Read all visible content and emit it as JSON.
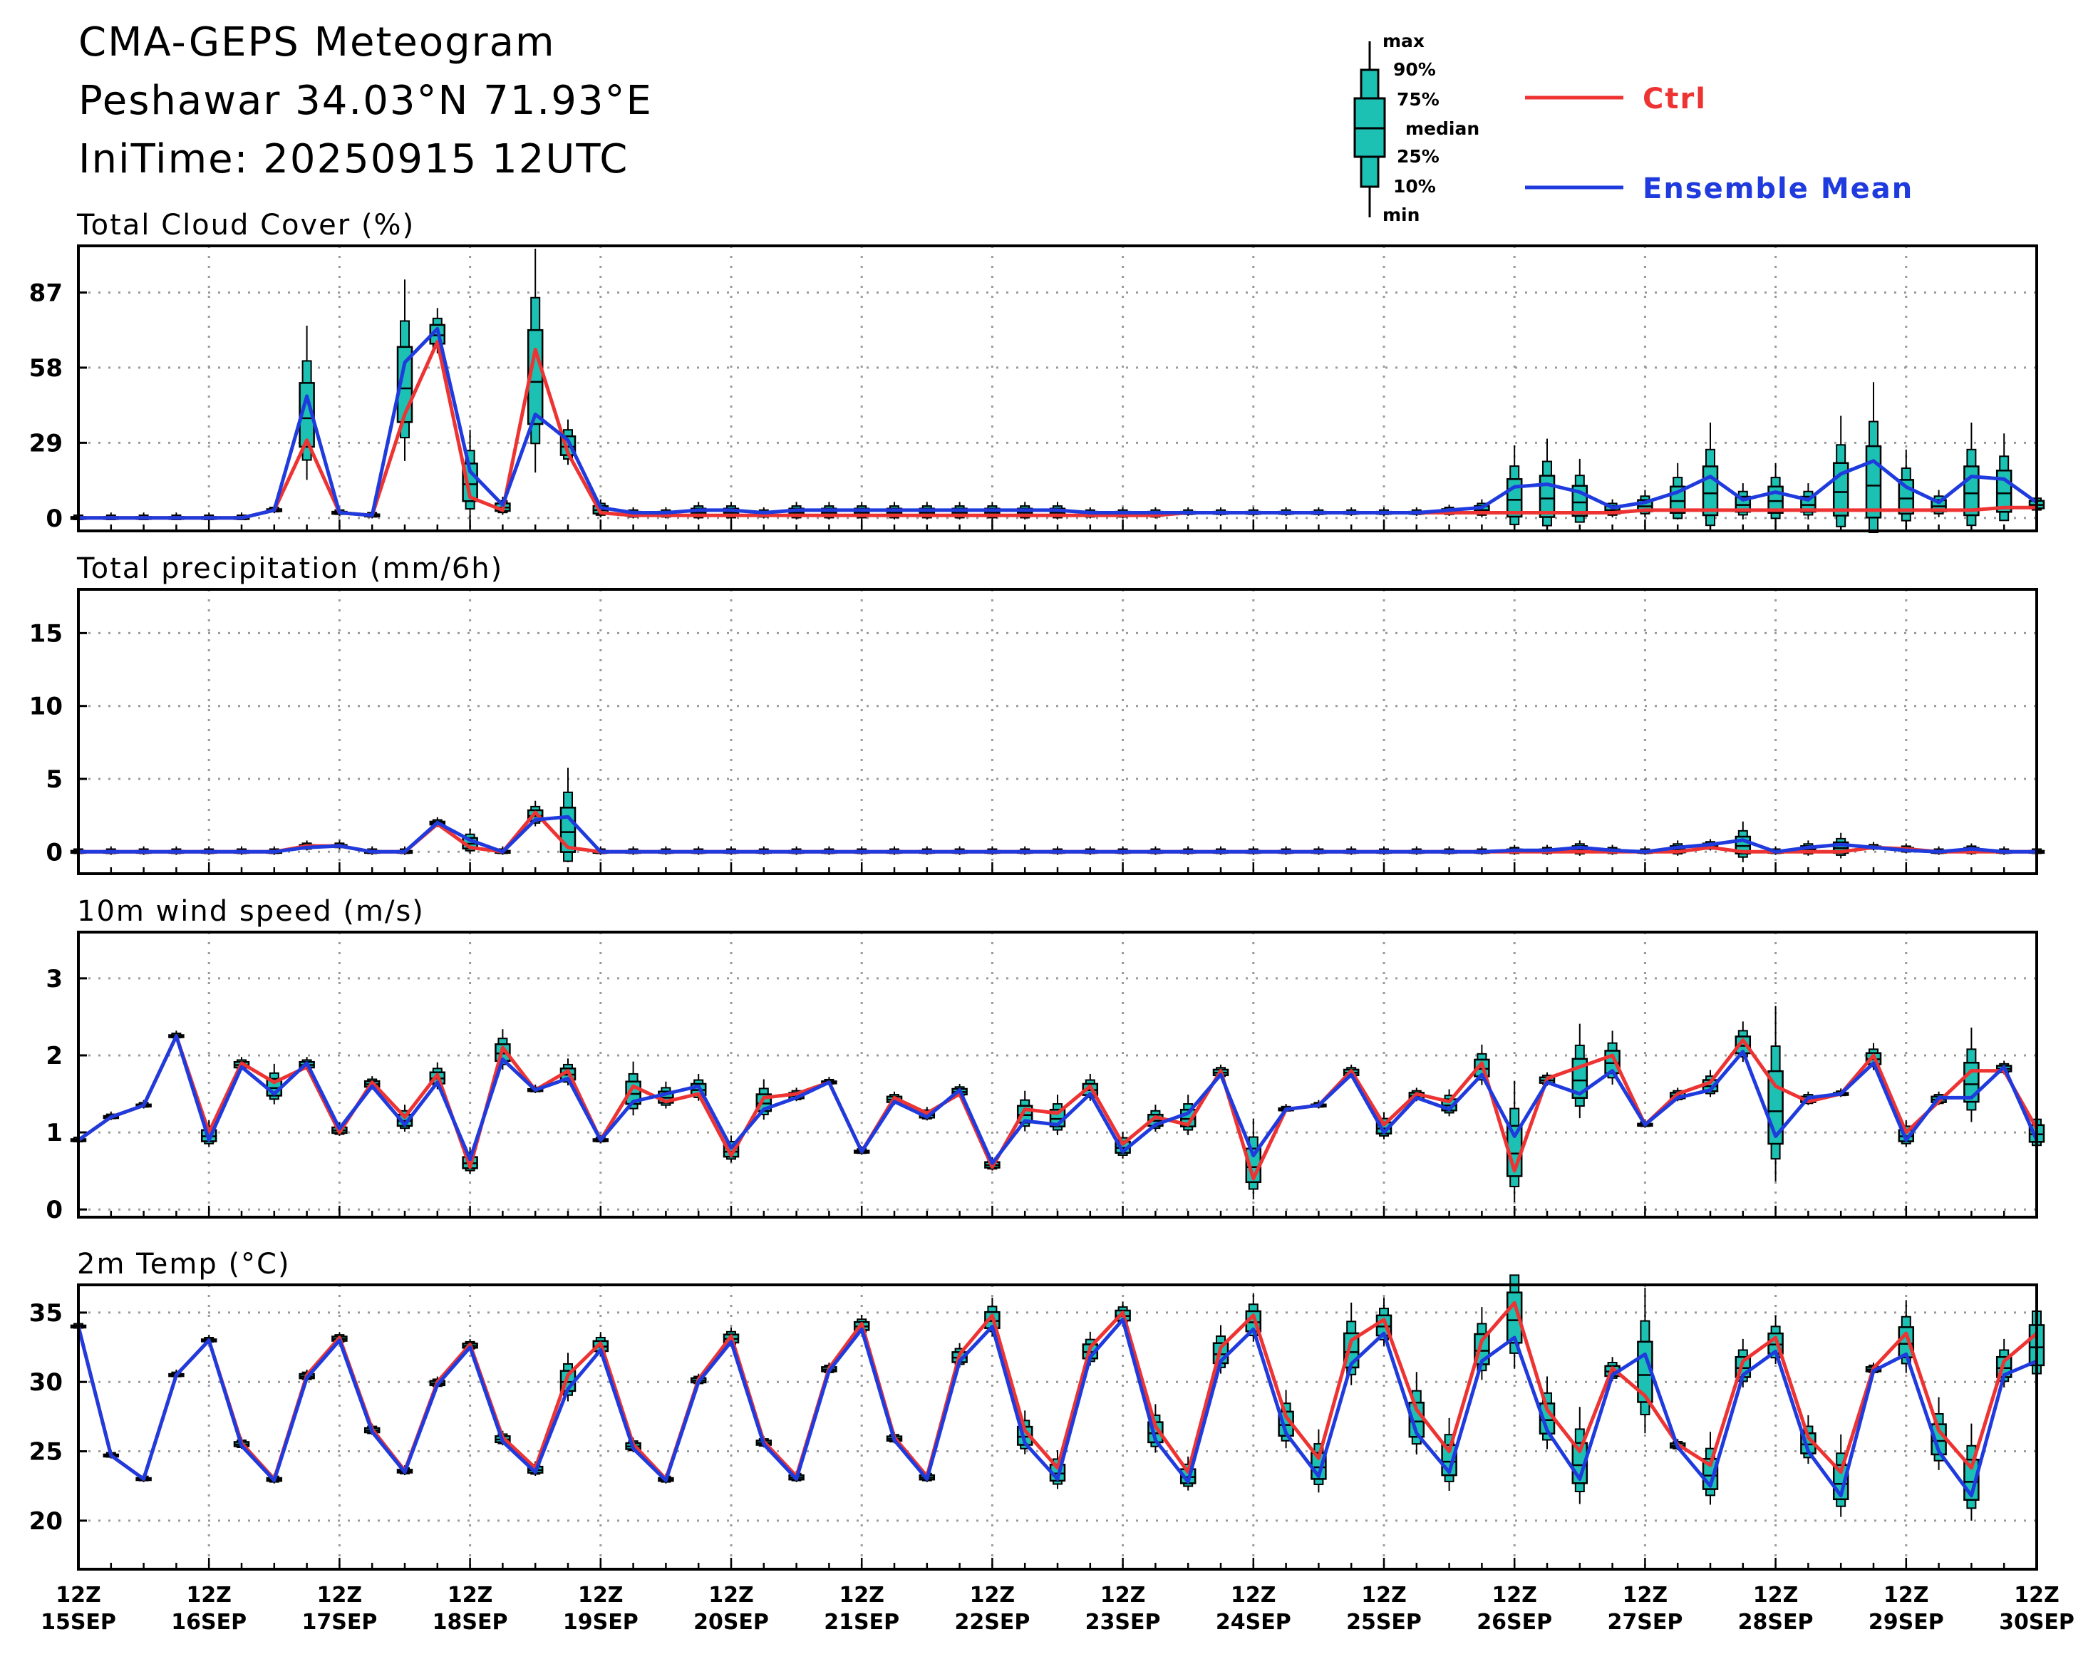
{
  "header": {
    "title": "CMA-GEPS Meteogram",
    "location": "Peshawar 34.03°N 71.93°E",
    "init_time": "IniTime: 20250915 12UTC"
  },
  "legend": {
    "box_labels": [
      "max",
      "90%",
      "75%",
      "median",
      "25%",
      "10%",
      "min"
    ],
    "ctrl_label": "Ctrl",
    "mean_label": "Ensemble Mean",
    "colors": {
      "ctrl": "#ee3333",
      "mean": "#1f3bde",
      "box": "#1cc1b3"
    }
  },
  "chart_data": [
    {
      "type": "boxplot",
      "title": "Total Cloud Cover (%)",
      "ylim": [
        -5,
        105
      ],
      "yticks": [
        0,
        29,
        58,
        87
      ],
      "grid": true,
      "steps": 61,
      "x_major_labels": [
        [
          "12Z",
          "15SEP"
        ],
        [
          "12Z",
          "16SEP"
        ],
        [
          "12Z",
          "17SEP"
        ],
        [
          "12Z",
          "18SEP"
        ],
        [
          "12Z",
          "19SEP"
        ],
        [
          "12Z",
          "20SEP"
        ],
        [
          "12Z",
          "21SEP"
        ],
        [
          "12Z",
          "22SEP"
        ],
        [
          "12Z",
          "23SEP"
        ],
        [
          "12Z",
          "24SEP"
        ],
        [
          "12Z",
          "25SEP"
        ],
        [
          "12Z",
          "26SEP"
        ],
        [
          "12Z",
          "27SEP"
        ],
        [
          "12Z",
          "28SEP"
        ],
        [
          "12Z",
          "29SEP"
        ],
        [
          "12Z",
          "30SEP"
        ]
      ],
      "ctrl": [
        0,
        0,
        0,
        0,
        0,
        0,
        3,
        30,
        2,
        1,
        40,
        68,
        8,
        3,
        65,
        25,
        2,
        1,
        1,
        1,
        1,
        1,
        1,
        1,
        1,
        1,
        1,
        1,
        1,
        1,
        1,
        1,
        1,
        1,
        2,
        2,
        2,
        2,
        2,
        2,
        2,
        2,
        2,
        2,
        2,
        2,
        2,
        2,
        3,
        3,
        3,
        3,
        3,
        3,
        3,
        3,
        3,
        3,
        3,
        4,
        4
      ],
      "mean": [
        0,
        0,
        0,
        0,
        0,
        0,
        3,
        47,
        2,
        1,
        60,
        73,
        18,
        5,
        40,
        30,
        4,
        2,
        2,
        3,
        3,
        2,
        3,
        3,
        3,
        3,
        3,
        3,
        3,
        3,
        3,
        2,
        2,
        2,
        2,
        2,
        2,
        2,
        2,
        2,
        2,
        2,
        3,
        4,
        12,
        13,
        10,
        4,
        6,
        10,
        16,
        7,
        10,
        7,
        17,
        22,
        12,
        6,
        16,
        15,
        6
      ]
    },
    {
      "type": "boxplot",
      "title": "Total precipitation (mm/6h)",
      "ylim": [
        -1.5,
        18
      ],
      "yticks": [
        0,
        5,
        10,
        15
      ],
      "grid": true,
      "steps": 61,
      "ctrl": [
        0,
        0,
        0,
        0,
        0,
        0,
        0,
        0.4,
        0.4,
        0,
        0,
        1.9,
        0.3,
        0,
        2.7,
        0.3,
        0,
        0,
        0,
        0,
        0,
        0,
        0,
        0,
        0,
        0,
        0,
        0,
        0,
        0,
        0,
        0,
        0,
        0,
        0,
        0,
        0,
        0,
        0,
        0,
        0,
        0,
        0,
        0,
        0,
        0,
        0,
        0,
        0,
        0,
        0.3,
        0,
        0,
        0,
        0,
        0.3,
        0.2,
        0,
        0,
        0,
        0
      ],
      "mean": [
        0,
        0,
        0,
        0,
        0,
        0,
        0,
        0.3,
        0.4,
        0,
        0,
        2.0,
        0.8,
        0,
        2.2,
        2.4,
        0,
        0,
        0,
        0,
        0,
        0,
        0,
        0,
        0,
        0,
        0,
        0,
        0,
        0,
        0,
        0,
        0,
        0,
        0,
        0,
        0,
        0,
        0,
        0,
        0,
        0,
        0,
        0,
        0.1,
        0.1,
        0.3,
        0.1,
        0,
        0.3,
        0.5,
        0.8,
        0,
        0.3,
        0.5,
        0.3,
        0.1,
        0,
        0.2,
        0,
        0
      ]
    },
    {
      "type": "boxplot",
      "title": "10m wind speed (m/s)",
      "ylim": [
        -0.1,
        3.6
      ],
      "yticks": [
        0,
        1,
        2,
        3
      ],
      "grid": true,
      "steps": 61,
      "ctrl": [
        0.9,
        1.2,
        1.35,
        2.25,
        1.0,
        1.9,
        1.65,
        1.85,
        1.0,
        1.65,
        1.2,
        1.75,
        0.55,
        2.1,
        1.55,
        1.8,
        0.9,
        1.6,
        1.4,
        1.5,
        0.7,
        1.45,
        1.5,
        1.65,
        0.75,
        1.45,
        1.25,
        1.5,
        0.55,
        1.3,
        1.25,
        1.6,
        0.85,
        1.2,
        1.1,
        1.8,
        0.4,
        1.3,
        1.35,
        1.8,
        1.1,
        1.5,
        1.4,
        1.9,
        0.5,
        1.7,
        1.85,
        2.0,
        1.1,
        1.5,
        1.65,
        2.2,
        1.6,
        1.4,
        1.5,
        2.0,
        1.0,
        1.4,
        1.8,
        1.8,
        1.05
      ],
      "mean": [
        0.9,
        1.2,
        1.35,
        2.25,
        0.9,
        1.85,
        1.5,
        1.9,
        1.05,
        1.6,
        1.1,
        1.65,
        0.65,
        1.95,
        1.55,
        1.7,
        0.9,
        1.4,
        1.5,
        1.6,
        0.8,
        1.3,
        1.45,
        1.65,
        0.75,
        1.4,
        1.2,
        1.55,
        0.6,
        1.15,
        1.1,
        1.5,
        0.75,
        1.1,
        1.25,
        1.75,
        0.7,
        1.3,
        1.35,
        1.75,
        1.0,
        1.45,
        1.3,
        1.75,
        0.95,
        1.65,
        1.5,
        1.8,
        1.1,
        1.45,
        1.55,
        2.05,
        0.95,
        1.45,
        1.5,
        1.9,
        0.9,
        1.45,
        1.45,
        1.85,
        0.9
      ]
    },
    {
      "type": "boxplot",
      "title": "2m Temp (°C)",
      "ylim": [
        16.5,
        37
      ],
      "yticks": [
        20,
        25,
        30,
        35
      ],
      "grid": true,
      "steps": 61,
      "ctrl": [
        34,
        24.7,
        23,
        30.5,
        33,
        25.6,
        23,
        30.5,
        33.2,
        26.6,
        23.6,
        30,
        32.7,
        26,
        23.8,
        30.5,
        32.8,
        25.5,
        23,
        30.2,
        33.3,
        25.7,
        23.2,
        31,
        34.2,
        26,
        23.2,
        32,
        34.8,
        26.5,
        23.8,
        32.5,
        35,
        26.8,
        23.5,
        32.5,
        34.8,
        27.5,
        24.5,
        33,
        34.5,
        28,
        25,
        33,
        35.7,
        28,
        25,
        31,
        29,
        25.5,
        24,
        31.5,
        33.2,
        26,
        23.5,
        31,
        33.5,
        26.5,
        23.8,
        31.5,
        33.5
      ],
      "mean": [
        34,
        24.7,
        23,
        30.5,
        33,
        25.4,
        22.9,
        30.3,
        33,
        26.4,
        23.5,
        29.8,
        32.5,
        25.7,
        23.5,
        29.5,
        32.3,
        25.2,
        22.9,
        30,
        32.9,
        25.5,
        23,
        30.8,
        33.8,
        25.8,
        23,
        31.5,
        34,
        25.6,
        23,
        31.8,
        34.5,
        25.8,
        22.8,
        31.5,
        33.8,
        26.3,
        23.2,
        31.3,
        33.5,
        26.3,
        23.5,
        31.5,
        33.2,
        26.5,
        23,
        30.5,
        32,
        25.3,
        22.5,
        30.5,
        32.2,
        25,
        21.8,
        30.8,
        32,
        25,
        21.8,
        30.5,
        31.5
      ]
    }
  ]
}
